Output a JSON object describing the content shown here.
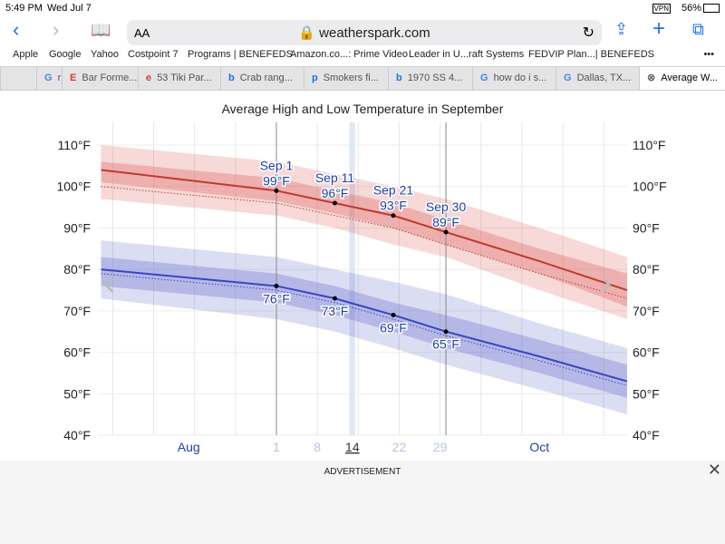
{
  "status": {
    "time": "5:49 PM",
    "date": "Wed Jul 7",
    "vpn": "VPN",
    "battery": "56%"
  },
  "toolbar": {
    "text_size": "AA",
    "url": "weatherspark.com"
  },
  "bookmarks": [
    "Apple",
    "Google",
    "Yahoo",
    "Costpoint 7",
    "Programs | BENEFEDS",
    "Amazon.co...: Prime Video",
    "Leader in U...raft Systems",
    "FEDVIP Plan...| BENEFEDS"
  ],
  "bookmarks_more": "•••",
  "tabs": [
    {
      "icon": "G",
      "label": "r",
      "color": "#4285f4"
    },
    {
      "icon": "E",
      "label": "Bar Forme...",
      "color": "#e53935"
    },
    {
      "icon": "e",
      "label": "53 Tiki Par...",
      "color": "#e53935"
    },
    {
      "icon": "b",
      "label": "Crab rang...",
      "color": "#1a73e8"
    },
    {
      "icon": "p",
      "label": "Smokers fi...",
      "color": "#1a73e8"
    },
    {
      "icon": "b",
      "label": "1970 SS 4...",
      "color": "#1a73e8"
    },
    {
      "icon": "G",
      "label": "how do i s...",
      "color": "#4285f4"
    },
    {
      "icon": "G",
      "label": "Dallas, TX...",
      "color": "#4285f4"
    },
    {
      "icon": "⊗",
      "label": "Average W...",
      "color": "#666"
    }
  ],
  "ad": {
    "label": "ADVERTISEMENT",
    "close": "✕"
  },
  "chart_data": {
    "type": "line",
    "title": "Average High and Low Temperature in September",
    "y_ticks": [
      "40°F",
      "50°F",
      "60°F",
      "70°F",
      "80°F",
      "90°F",
      "100°F",
      "110°F"
    ],
    "ylim": [
      40,
      110
    ],
    "x_days_since_sep1": [
      -30,
      0,
      10,
      20,
      29,
      45,
      60
    ],
    "x_labels": [
      {
        "label": "Aug",
        "day": -15,
        "major": true
      },
      {
        "label": "1",
        "day": 0
      },
      {
        "label": "8",
        "day": 7
      },
      {
        "label": "14",
        "day": 13,
        "current": true
      },
      {
        "label": "22",
        "day": 21
      },
      {
        "label": "29",
        "day": 28
      },
      {
        "label": "Oct",
        "day": 45,
        "major": true
      }
    ],
    "series": [
      {
        "name": "Average High",
        "color": "#c0392b",
        "band_color": "#d9534f",
        "values": [
          104,
          99,
          96,
          93,
          89,
          82,
          75
        ],
        "mean_dotted": [
          100,
          96,
          93,
          90,
          86,
          79,
          73
        ],
        "p25": [
          101,
          96.5,
          93.5,
          90,
          86,
          79,
          71
        ],
        "p75": [
          106,
          102,
          99,
          96,
          92,
          85,
          79
        ],
        "p10": [
          97,
          93,
          90,
          86,
          83,
          75,
          68
        ],
        "p90": [
          110,
          106,
          103,
          100,
          97,
          90,
          83
        ]
      },
      {
        "name": "Average Low",
        "color": "#3b44c4",
        "band_color": "#5c63c9",
        "values": [
          80,
          76,
          73,
          69,
          65,
          59,
          53
        ],
        "mean_dotted": [
          79,
          75,
          72,
          68,
          64,
          58,
          52
        ],
        "p25": [
          76,
          72,
          69,
          65,
          61,
          55,
          49
        ],
        "p75": [
          83,
          79,
          76,
          72,
          69,
          63,
          57
        ],
        "p10": [
          73,
          68,
          65,
          61,
          57,
          51,
          45
        ],
        "p90": [
          87,
          83,
          80,
          77,
          74,
          67,
          61
        ]
      }
    ],
    "annotations": [
      {
        "label": "Sep 1",
        "day": 0,
        "high": "99°F",
        "low": "76°F"
      },
      {
        "label": "Sep 11",
        "day": 10,
        "high": "96°F",
        "low": "73°F"
      },
      {
        "label": "Sep 21",
        "day": 20,
        "high": "93°F",
        "low": "69°F"
      },
      {
        "label": "Sep 30",
        "day": 29,
        "high": "89°F",
        "low": "65°F"
      }
    ]
  }
}
